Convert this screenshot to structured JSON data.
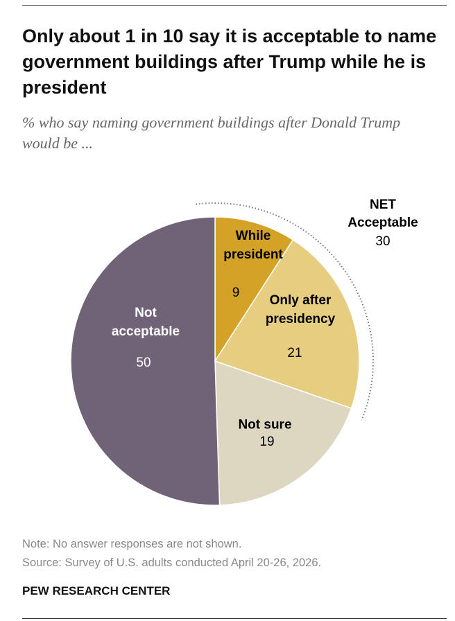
{
  "chart_data": {
    "type": "pie",
    "title": "Only about 1 in 10 say it is acceptable to name government buildings after Trump while he is president",
    "subtitle": "% who say naming government buildings after Donald Trump would be ...",
    "categories": [
      "While president",
      "Only after presidency",
      "Not sure",
      "Not acceptable"
    ],
    "values": [
      9,
      21,
      19,
      50
    ],
    "colors": [
      "#d3a227",
      "#e6cd80",
      "#ddd7c2",
      "#716377"
    ],
    "annotation": {
      "label": "NET Acceptable",
      "value": 30
    },
    "note": "Note: No answer responses are not shown.",
    "source": "Source: Survey of U.S. adults conducted April 20-26, 2026.",
    "footer": "PEW RESEARCH CENTER"
  }
}
